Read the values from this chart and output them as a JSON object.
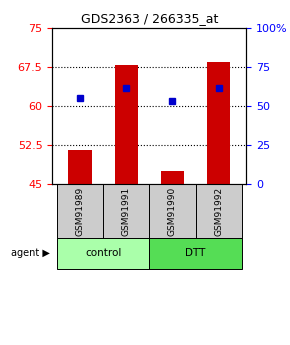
{
  "title": "GDS2363 / 266335_at",
  "samples": [
    "GSM91989",
    "GSM91991",
    "GSM91990",
    "GSM91992"
  ],
  "groups": [
    "control",
    "control",
    "DTT",
    "DTT"
  ],
  "bar_bottom": 45,
  "red_bars": [
    51.5,
    67.8,
    47.5,
    68.5
  ],
  "blue_dots": [
    61.5,
    63.5,
    61.0,
    63.5
  ],
  "ylim_left": [
    45,
    75
  ],
  "ylim_right": [
    0,
    100
  ],
  "yticks_left": [
    45,
    52.5,
    60,
    67.5,
    75
  ],
  "yticks_right": [
    0,
    25,
    50,
    75,
    100
  ],
  "ytick_labels_right": [
    "0",
    "25",
    "50",
    "75",
    "100%"
  ],
  "hlines": [
    52.5,
    60,
    67.5
  ],
  "bar_color": "#cc0000",
  "dot_color": "#0000cc",
  "control_color": "#aaffaa",
  "dtt_color": "#55dd55",
  "sample_bg_color": "#cccccc",
  "legend_count_color": "#cc0000",
  "legend_pct_color": "#0000cc",
  "bar_width": 0.5
}
